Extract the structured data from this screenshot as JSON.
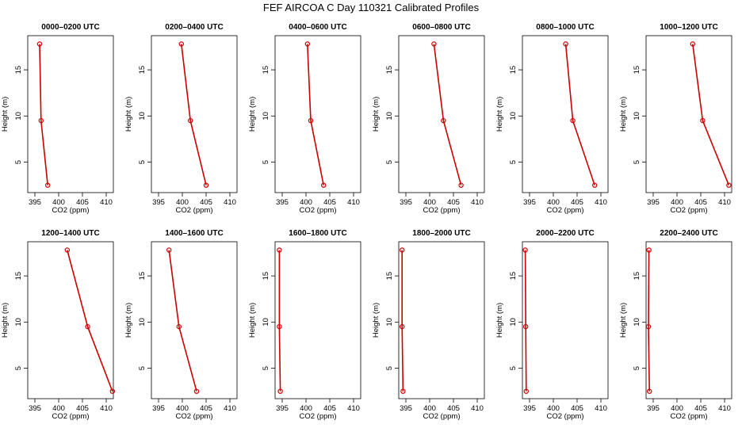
{
  "figure": {
    "title": "FEF AIRCOA C  Day 110321  Calibrated Profiles"
  },
  "chart_data": {
    "type": "line",
    "xlabel": "CO2 (ppm)",
    "ylabel": "Height (m)",
    "xlim": [
      393.5,
      411.5
    ],
    "ylim": [
      1.7,
      18.7
    ],
    "xticks": [
      395,
      400,
      405,
      410
    ],
    "yticks": [
      5,
      10,
      15
    ],
    "heights": [
      2.5,
      9.5,
      17.8
    ],
    "line_color": "#cc0000",
    "panels": [
      {
        "title": "0000–0200 UTC",
        "co2": [
          397.7,
          396.3,
          396.0
        ]
      },
      {
        "title": "0200–0400 UTC",
        "co2": [
          405.0,
          401.7,
          399.8
        ]
      },
      {
        "title": "0400–0600 UTC",
        "co2": [
          403.7,
          401.0,
          400.3
        ]
      },
      {
        "title": "0600–0800 UTC",
        "co2": [
          406.6,
          402.9,
          400.9
        ]
      },
      {
        "title": "0800–1000 UTC",
        "co2": [
          408.7,
          404.1,
          402.6
        ]
      },
      {
        "title": "1000–1200 UTC",
        "co2": [
          410.9,
          405.4,
          403.3
        ]
      },
      {
        "title": "1200–1400 UTC",
        "co2": [
          411.3,
          406.1,
          401.8
        ]
      },
      {
        "title": "1400–1600 UTC",
        "co2": [
          403.0,
          399.3,
          397.2
        ]
      },
      {
        "title": "1600–1800 UTC",
        "co2": [
          394.6,
          394.4,
          394.4
        ]
      },
      {
        "title": "1800–2000 UTC",
        "co2": [
          394.4,
          394.2,
          394.2
        ]
      },
      {
        "title": "2000–2200 UTC",
        "co2": [
          394.3,
          394.2,
          394.1
        ]
      },
      {
        "title": "2200–2400 UTC",
        "co2": [
          394.2,
          394.0,
          394.1
        ]
      }
    ]
  }
}
